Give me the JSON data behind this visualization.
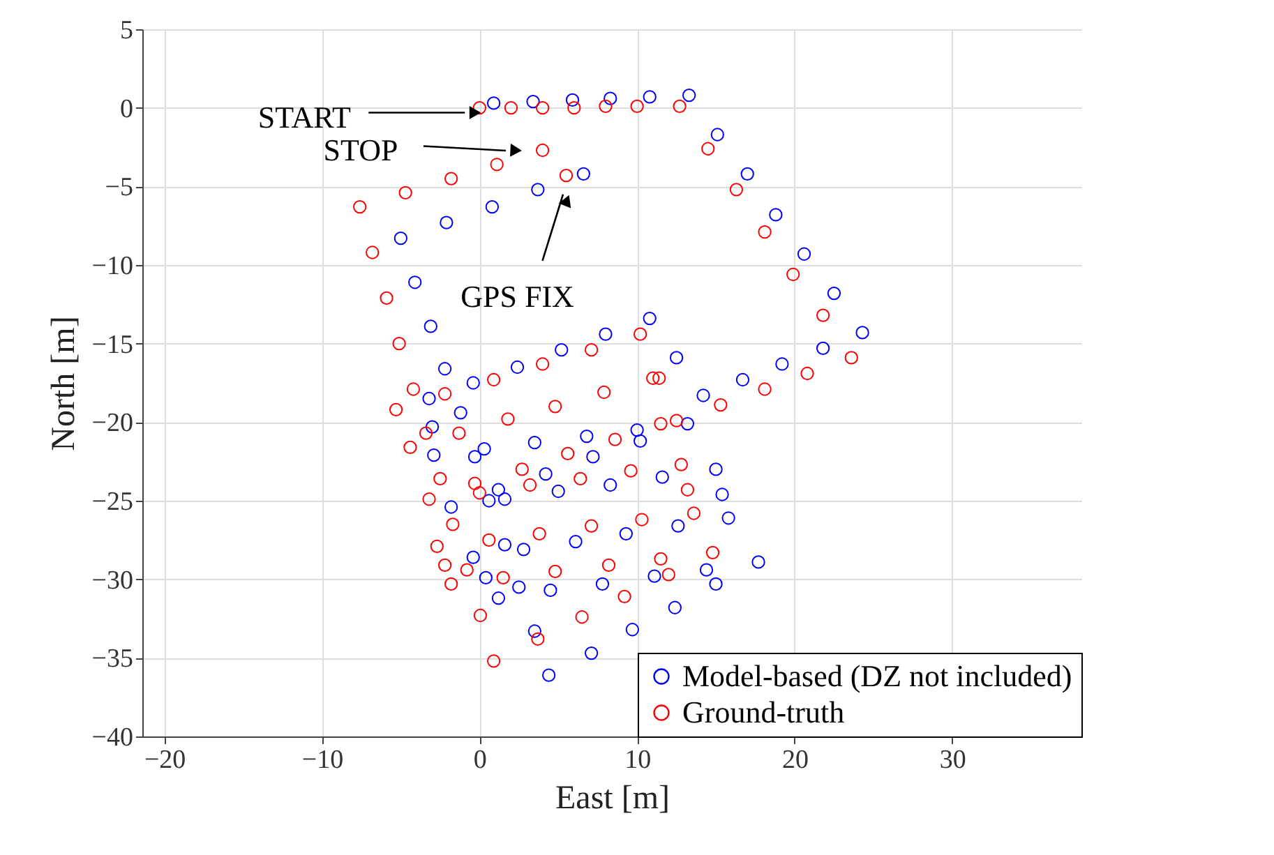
{
  "chart_data": {
    "type": "scatter",
    "xlabel": "East [m]",
    "ylabel": "North [m]",
    "xlim": [
      -21.4,
      38.2
    ],
    "ylim": [
      -40,
      5
    ],
    "xticks": [
      -20,
      -10,
      0,
      10,
      20,
      30
    ],
    "yticks": [
      -40,
      -35,
      -30,
      -25,
      -20,
      -15,
      -10,
      -5,
      0,
      5
    ],
    "grid": true,
    "legend": "bottom right",
    "marker": "circle",
    "series": [
      {
        "name": "Model-based (DZ not included)",
        "color": "#0000ff",
        "x": [
          0.9,
          3.4,
          5.9,
          8.3,
          10.8,
          13.3,
          15.1,
          17.0,
          18.8,
          20.6,
          22.5,
          24.3,
          21.8,
          19.2,
          16.7,
          14.2,
          12.5,
          10.8,
          8.0,
          5.2,
          2.4,
          -0.4,
          -3.2,
          -3.0,
          -2.9,
          0.3,
          3.5,
          6.8,
          10.0,
          13.2,
          10.2,
          7.2,
          4.2,
          1.2,
          -1.8,
          1.6,
          5.0,
          8.3,
          11.6,
          15.0,
          15.4,
          15.8,
          12.6,
          9.3,
          6.1,
          2.8,
          -0.4,
          0.4,
          1.2,
          4.5,
          7.8,
          11.1,
          14.4,
          17.7,
          15.0,
          12.4,
          9.7,
          7.1,
          4.4,
          3.5,
          2.5,
          1.6,
          0.6,
          -0.3,
          -1.2,
          -2.2,
          -3.1,
          -4.1,
          -5.0,
          -2.1,
          0.8,
          3.7,
          6.6
        ],
        "values": [
          0.3,
          0.4,
          0.5,
          0.6,
          0.7,
          0.8,
          -1.7,
          -4.2,
          -6.8,
          -9.3,
          -11.8,
          -14.3,
          -15.3,
          -16.3,
          -17.3,
          -18.3,
          -15.9,
          -13.4,
          -14.4,
          -15.4,
          -16.5,
          -17.5,
          -18.5,
          -20.3,
          -22.1,
          -21.7,
          -21.3,
          -20.9,
          -20.5,
          -20.1,
          -21.2,
          -22.2,
          -23.3,
          -24.3,
          -25.4,
          -24.9,
          -24.4,
          -24.0,
          -23.5,
          -23.0,
          -24.6,
          -26.1,
          -26.6,
          -27.1,
          -27.6,
          -28.1,
          -28.6,
          -29.9,
          -31.2,
          -30.7,
          -30.3,
          -29.8,
          -29.4,
          -28.9,
          -30.3,
          -31.8,
          -33.2,
          -34.7,
          -36.1,
          -33.3,
          -30.5,
          -27.8,
          -25.0,
          -22.2,
          -19.4,
          -16.6,
          -13.9,
          -11.1,
          -8.3,
          -7.3,
          -6.3,
          -5.2,
          -4.2
        ]
      },
      {
        "name": "Ground-truth",
        "color": "#ff0000",
        "x": [
          0,
          2,
          4,
          6,
          8,
          10,
          12.7,
          14.5,
          16.3,
          18.1,
          19.9,
          21.8,
          23.6,
          20.8,
          18.1,
          15.3,
          12.5,
          11.4,
          10.2,
          7.1,
          4.0,
          0.9,
          -2.2,
          -5.3,
          -4.4,
          -1.3,
          1.8,
          4.8,
          7.9,
          11.0,
          11.5,
          8.6,
          5.6,
          2.7,
          -0.3,
          -3.2,
          0,
          3.2,
          6.4,
          9.6,
          12.8,
          13.2,
          13.6,
          10.3,
          7.1,
          3.8,
          0.6,
          -2.7,
          -2.2,
          -1.8,
          1.5,
          4.8,
          8.2,
          11.5,
          14.8,
          12.0,
          9.2,
          6.5,
          3.7,
          0.9,
          0.05,
          -0.8,
          -1.7,
          -2.5,
          -3.4,
          -4.2,
          -5.1,
          -5.9,
          -6.8,
          -7.6,
          -4.7,
          -1.8,
          1.1,
          4.0,
          5.5
        ],
        "values": [
          0,
          0,
          0,
          0,
          0.1,
          0.1,
          0.1,
          -2.6,
          -5.2,
          -7.9,
          -10.6,
          -13.2,
          -15.9,
          -16.9,
          -17.9,
          -18.9,
          -19.9,
          -17.2,
          -14.4,
          -15.4,
          -16.3,
          -17.3,
          -18.2,
          -19.2,
          -21.6,
          -20.7,
          -19.8,
          -19.0,
          -18.1,
          -17.2,
          -20.1,
          -21.1,
          -22.0,
          -23.0,
          -23.9,
          -24.9,
          -24.5,
          -24.0,
          -23.6,
          -23.1,
          -22.7,
          -24.3,
          -25.8,
          -26.2,
          -26.6,
          -27.1,
          -27.5,
          -27.9,
          -29.1,
          -30.3,
          -29.9,
          -29.5,
          -29.1,
          -28.7,
          -28.3,
          -29.7,
          -31.1,
          -32.4,
          -33.8,
          -35.2,
          -32.3,
          -29.4,
          -26.5,
          -23.6,
          -20.7,
          -17.9,
          -15.0,
          -12.1,
          -9.2,
          -6.3,
          -5.4,
          -4.5,
          -3.6,
          -2.7,
          -4.3
        ]
      }
    ],
    "annotations": [
      {
        "text": "START",
        "x": -0.4,
        "y": -0.3
      },
      {
        "text": "STOP",
        "x": 2.2,
        "y": -2.7
      },
      {
        "text": "GPS FIX",
        "x": 5.5,
        "y": -6.0
      }
    ]
  }
}
